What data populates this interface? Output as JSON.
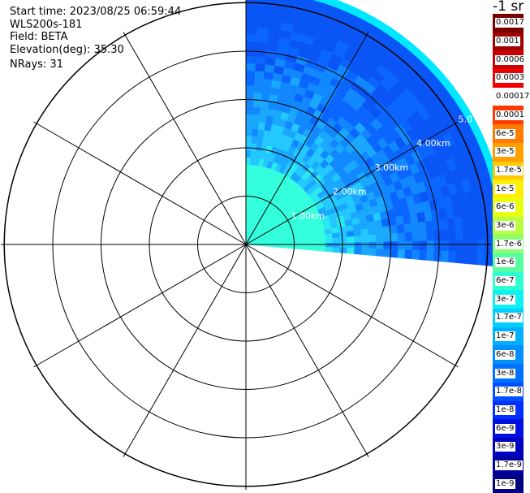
{
  "info": {
    "start_time": "Start time: 2023/08/25 06:59:44",
    "instrument": "WLS200s-181",
    "field": "Field: BETA",
    "elevation": "Elevation(deg): 35.30",
    "nrays": "NRays: 31"
  },
  "ring_labels": [
    "1.00km",
    "2.00km",
    "3.00km",
    "4.00km",
    "5.0"
  ],
  "colorbar": {
    "units": "-1 sr",
    "labels": [
      "0.0017",
      "0.001",
      "0.0006",
      "0.0003",
      "0.00017",
      "0.0001",
      "6e-5",
      "3e-5",
      "1.7e-5",
      "1e-5",
      "6e-6",
      "3e-6",
      "1.7e-6",
      "1e-6",
      "6e-7",
      "3e-7",
      "1.7e-7",
      "1e-7",
      "6e-8",
      "3e-8",
      "1.7e-8",
      "1e-8",
      "6e-9",
      "3e-9",
      "1.7e-9",
      "1e-9"
    ],
    "colors": [
      "#7a0000",
      "#a00000",
      "#c80000",
      "#f00000",
      "#ffffff",
      "#ff3a00",
      "#ff7a00",
      "#ffa000",
      "#ffc800",
      "#ffee00",
      "#e8ff10",
      "#b8ff40",
      "#88ff70",
      "#58ffa0",
      "#30ffd0",
      "#10f0f0",
      "#00d0ff",
      "#00b0ff",
      "#0090ff",
      "#0070ff",
      "#0050ff",
      "#0030ff",
      "#0010e0",
      "#0000c0",
      "#0000a0",
      "#000080"
    ]
  },
  "sector": {
    "azimuth_start_deg": 0,
    "azimuth_end_deg": 95,
    "max_range_km": 5.4,
    "rays": 31,
    "colors": {
      "near": "#33ffdd",
      "mid": "#22b8ff",
      "far": "#0a66ff",
      "edge": "#00e8ff"
    }
  }
}
